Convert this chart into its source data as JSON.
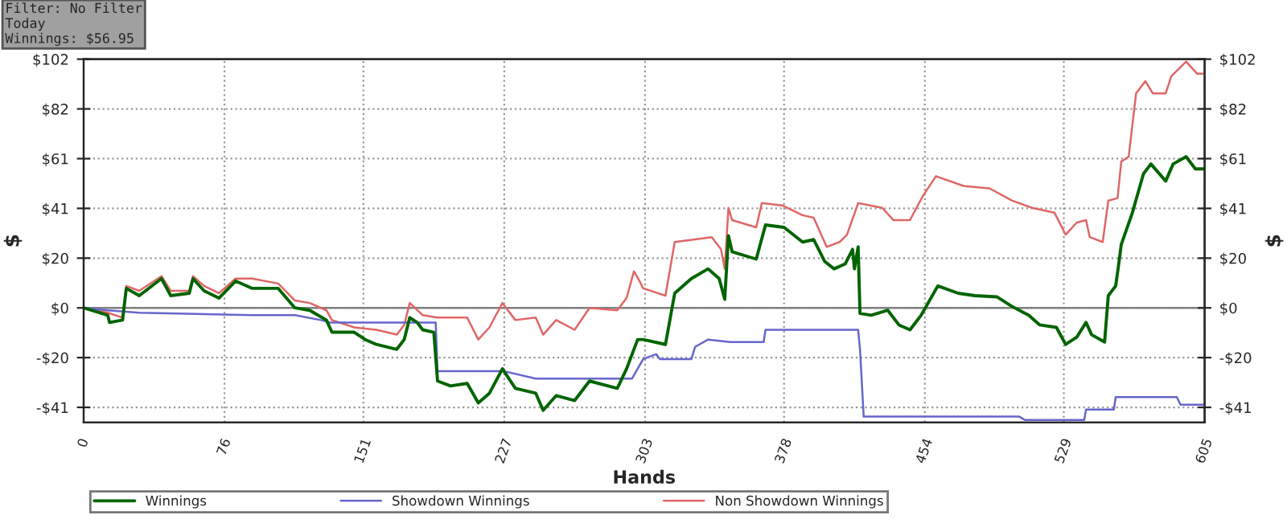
{
  "chart_data": {
    "type": "line",
    "xlabel": "Hands",
    "ylabel": "$",
    "y2label": "$",
    "annotations": [
      "Filter: No Filter\nToday\nWinnings: $56.95"
    ],
    "xlim": [
      0,
      605
    ],
    "xticks": [
      0,
      76,
      151,
      227,
      303,
      378,
      454,
      529,
      605
    ],
    "ylim": [
      -47,
      102
    ],
    "yticks": [
      {
        "value": -40.8,
        "label": "-$41"
      },
      {
        "value": -20.4,
        "label": "-$20"
      },
      {
        "value": 0,
        "label": "$0"
      },
      {
        "value": 20.4,
        "label": "$20"
      },
      {
        "value": 40.8,
        "label": "$41"
      },
      {
        "value": 61.2,
        "label": "$61"
      },
      {
        "value": 81.6,
        "label": "$82"
      },
      {
        "value": 102,
        "label": "$102"
      }
    ],
    "y2lim": [
      -47,
      102
    ],
    "y2ticks": [
      {
        "value": -40.8,
        "label": "-$41"
      },
      {
        "value": -20.4,
        "label": "-$20"
      },
      {
        "value": 0,
        "label": "$0"
      },
      {
        "value": 20.4,
        "label": "$20"
      },
      {
        "value": 40.8,
        "label": "$41"
      },
      {
        "value": 61.2,
        "label": "$61"
      },
      {
        "value": 81.6,
        "label": "$82"
      },
      {
        "value": 102,
        "label": "$102"
      }
    ],
    "grid": true,
    "legend": "bottom",
    "marker": "none",
    "line_style": "solid",
    "ref_lines": [
      {
        "axis": "y",
        "value": 0,
        "label": null,
        "color": "#808080"
      }
    ],
    "series": [
      {
        "name": "Winnings",
        "color": "#006400",
        "x": [
          0,
          13,
          14,
          21,
          23,
          30,
          42,
          47,
          57,
          59,
          65,
          73,
          82,
          91,
          105,
          114,
          122,
          131,
          134,
          146,
          152,
          158,
          169,
          173,
          176,
          180,
          183,
          189,
          191,
          198,
          207,
          213,
          219,
          226,
          233,
          244,
          248,
          255,
          265,
          273,
          288,
          293,
          299,
          302,
          314,
          319,
          328,
          337,
          343,
          346,
          348,
          350,
          363,
          368,
          378,
          388,
          394,
          400,
          405,
          411,
          415,
          416,
          418,
          419,
          425,
          434,
          440,
          446,
          452,
          455,
          461,
          472,
          481,
          493,
          501,
          510,
          516,
          525,
          530,
          536,
          541,
          544,
          551,
          553,
          557,
          559,
          560,
          566,
          572,
          576,
          584,
          588,
          595,
          600,
          605
        ],
        "values": [
          0,
          -3,
          -6,
          -5,
          8,
          5,
          12,
          5,
          6,
          12,
          7,
          4,
          11,
          8,
          8,
          0,
          -1,
          -5,
          -10,
          -10,
          -13,
          -15,
          -17,
          -13,
          -4,
          -6,
          -9,
          -10,
          -30,
          -32,
          -31,
          -39,
          -35,
          -25,
          -33,
          -35,
          -42,
          -36,
          -38,
          -30,
          -33,
          -25,
          -13,
          -13,
          -15,
          6,
          12,
          16,
          12,
          3.5,
          29.6,
          23,
          20,
          34,
          33,
          27,
          28,
          19,
          16,
          18,
          24,
          16,
          25,
          -2.3,
          -3,
          -1,
          -7,
          -9,
          -3,
          1,
          9,
          6,
          5,
          4.5,
          0.6,
          -3,
          -7,
          -8,
          -15,
          -12,
          -6,
          -11,
          -14,
          5,
          9,
          20,
          26,
          39,
          55,
          59,
          52,
          59,
          62,
          57,
          57
        ]
      },
      {
        "name": "Showdown Winnings",
        "color": "#6666cc",
        "x": [
          0,
          13,
          30,
          91,
          114,
          128,
          133,
          190,
          191,
          227,
          244,
          296,
          302,
          309,
          311,
          328,
          330,
          337,
          349,
          367,
          368,
          418,
          419,
          421,
          505,
          508,
          540,
          541,
          556,
          557,
          590,
          592,
          605
        ],
        "values": [
          0,
          -1,
          -2,
          -3,
          -3,
          -5,
          -6,
          -6,
          -26,
          -26,
          -29,
          -29,
          -21,
          -19,
          -21,
          -21,
          -16,
          -13,
          -14,
          -14,
          -9,
          -9,
          -17,
          -44.6,
          -44.6,
          -46,
          -46,
          -41.7,
          -41.7,
          -36.6,
          -36.6,
          -39.7,
          -39.7
        ]
      },
      {
        "name": "Non Showdown Winnings",
        "color": "#e06666",
        "x": [
          0,
          13,
          21,
          23,
          30,
          42,
          47,
          57,
          59,
          65,
          73,
          82,
          91,
          105,
          114,
          122,
          131,
          134,
          146,
          158,
          169,
          173,
          176,
          183,
          191,
          207,
          213,
          219,
          226,
          233,
          244,
          248,
          255,
          265,
          273,
          288,
          293,
          297,
          300,
          302,
          314,
          319,
          339,
          344,
          346,
          348,
          350,
          363,
          366,
          377,
          388,
          394,
          401,
          408,
          412,
          418,
          431,
          437,
          446,
          453,
          460,
          475,
          489,
          501,
          512,
          524,
          530,
          536,
          541,
          543,
          550,
          553,
          558,
          560,
          564,
          568,
          573,
          577,
          584,
          587,
          591,
          595,
          601,
          605
        ],
        "values": [
          0,
          -2,
          -4,
          9,
          7,
          13,
          7,
          7,
          13,
          9,
          6,
          12,
          12,
          10,
          3,
          2,
          -1,
          -5,
          -8,
          -9,
          -11,
          -7,
          2,
          -3,
          -4,
          -4,
          -13,
          -8,
          2,
          -5,
          -4,
          -11,
          -5,
          -9,
          0,
          -1,
          4,
          15,
          11,
          8,
          5,
          27,
          29,
          24,
          16,
          41,
          36,
          33,
          43,
          42,
          38,
          37,
          25,
          27,
          30,
          43,
          41,
          36,
          36,
          46,
          54,
          50,
          49,
          44,
          41,
          39,
          30,
          35,
          36,
          29,
          27,
          44,
          45,
          60,
          62,
          88,
          93,
          88,
          88,
          95,
          98,
          101,
          96,
          96
        ]
      }
    ]
  }
}
